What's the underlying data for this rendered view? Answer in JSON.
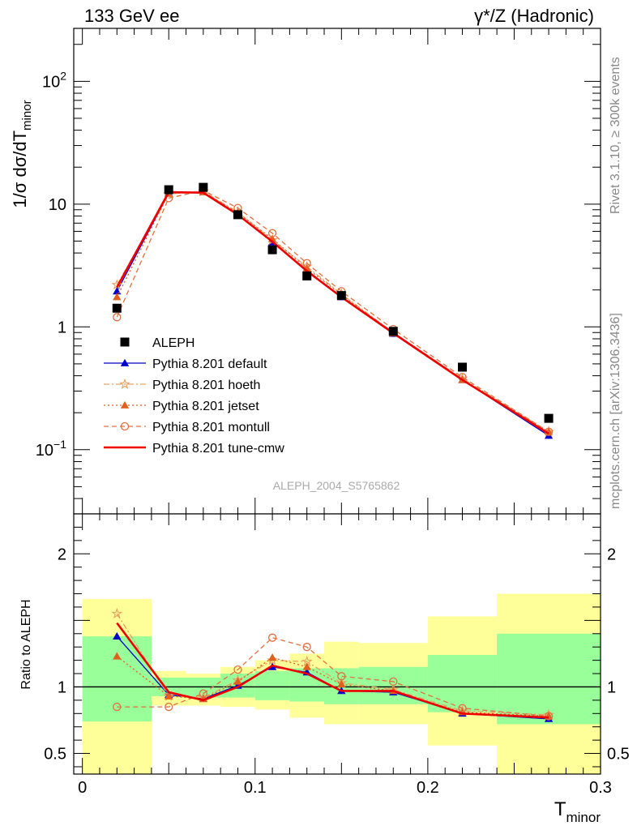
{
  "header": {
    "left": "133 GeV ee",
    "right": "γ*/Z (Hadronic)"
  },
  "side_labels": {
    "rivet": "Rivet 3.1.10, ≥ 300k events",
    "mcplots": "mcplots.cern.ch [arXiv:1306.3436]"
  },
  "analysis_id": "ALEPH_2004_S5765862",
  "colors": {
    "aleph": "#000000",
    "default": "#0000cc",
    "hoeth": "#e8a060",
    "jetset": "#e0601e",
    "montull": "#e07040",
    "tune_cmw": "#ee0000",
    "band_outer": "#ffff99",
    "band_inner": "#99ff99"
  },
  "chart_data": [
    {
      "type": "line",
      "panel": "main",
      "ylabel": "1/σ  dσ/dT_minor",
      "xlim": [
        -0.005,
        0.3
      ],
      "ylim": [
        0.03,
        270
      ],
      "yscale": "log",
      "yticklabels": [
        "10^-1",
        "1",
        "10",
        "10^2"
      ],
      "legend_position": "left-middle",
      "x": [
        0.02,
        0.05,
        0.07,
        0.09,
        0.11,
        0.13,
        0.15,
        0.18,
        0.22,
        0.27
      ],
      "series": [
        {
          "name": "ALEPH",
          "style": "data",
          "values": [
            1.42,
            13.1,
            13.7,
            8.2,
            4.25,
            2.6,
            1.8,
            0.92,
            0.47,
            0.18
          ]
        },
        {
          "name": "Pythia 8.201 default",
          "style": "default",
          "values": [
            1.95,
            12.3,
            12.5,
            8.3,
            4.9,
            2.9,
            1.75,
            0.88,
            0.37,
            0.13
          ]
        },
        {
          "name": "Pythia 8.201 hoeth",
          "style": "hoeth",
          "values": [
            2.2,
            12.1,
            12.7,
            8.6,
            5.1,
            3.1,
            1.85,
            0.9,
            0.38,
            0.14
          ]
        },
        {
          "name": "Pythia 8.201 jetset",
          "style": "jetset",
          "values": [
            1.75,
            12.2,
            12.5,
            8.5,
            5.2,
            3.0,
            1.83,
            0.89,
            0.37,
            0.14
          ]
        },
        {
          "name": "Pythia 8.201 montull",
          "style": "montull",
          "values": [
            1.2,
            11.2,
            12.9,
            9.3,
            5.8,
            3.3,
            1.95,
            0.96,
            0.39,
            0.14
          ]
        },
        {
          "name": "Pythia 8.201 tune-cmw",
          "style": "tune_cmw",
          "values": [
            2.1,
            12.5,
            12.4,
            8.2,
            4.95,
            2.85,
            1.75,
            0.89,
            0.37,
            0.135
          ]
        }
      ]
    },
    {
      "type": "line",
      "panel": "ratio",
      "ylabel": "Ratio to ALEPH",
      "xlabel": "T_minor",
      "xlim": [
        -0.005,
        0.3
      ],
      "ylim": [
        0.345,
        2.3
      ],
      "xticklabels": [
        "0",
        "0.1",
        "0.2",
        "0.3"
      ],
      "yticklabels": [
        "0.5",
        "1",
        "2"
      ],
      "reference_line": 1,
      "bins": [
        [
          0,
          0.04
        ],
        [
          0.04,
          0.06
        ],
        [
          0.06,
          0.08
        ],
        [
          0.08,
          0.1
        ],
        [
          0.1,
          0.12
        ],
        [
          0.12,
          0.14
        ],
        [
          0.14,
          0.16
        ],
        [
          0.16,
          0.2
        ],
        [
          0.2,
          0.24
        ],
        [
          0.24,
          0.3
        ]
      ],
      "band_outer": [
        [
          0.345,
          1.66
        ],
        [
          0.86,
          1.12
        ],
        [
          0.86,
          1.1
        ],
        [
          0.85,
          1.15
        ],
        [
          0.83,
          1.2
        ],
        [
          0.77,
          1.25
        ],
        [
          0.72,
          1.34
        ],
        [
          0.72,
          1.33
        ],
        [
          0.56,
          1.53
        ],
        [
          0.345,
          1.7
        ]
      ],
      "band_inner": [
        [
          0.74,
          1.38
        ],
        [
          0.93,
          1.07
        ],
        [
          0.92,
          1.07
        ],
        [
          0.92,
          1.1
        ],
        [
          0.9,
          1.12
        ],
        [
          0.89,
          1.14
        ],
        [
          0.87,
          1.14
        ],
        [
          0.87,
          1.15
        ],
        [
          0.81,
          1.24
        ],
        [
          0.72,
          1.4
        ]
      ],
      "x": [
        0.02,
        0.05,
        0.07,
        0.09,
        0.11,
        0.13,
        0.15,
        0.18,
        0.22,
        0.27
      ],
      "series": [
        {
          "name": "Pythia 8.201 default",
          "style": "default",
          "values": [
            1.38,
            0.94,
            0.91,
            1.01,
            1.15,
            1.11,
            0.97,
            0.96,
            0.8,
            0.76
          ]
        },
        {
          "name": "Pythia 8.201 hoeth",
          "style": "hoeth",
          "values": [
            1.55,
            0.93,
            0.92,
            1.05,
            1.2,
            1.19,
            1.03,
            0.98,
            0.82,
            0.79
          ]
        },
        {
          "name": "Pythia 8.201 jetset",
          "style": "jetset",
          "values": [
            1.23,
            0.93,
            0.91,
            1.04,
            1.22,
            1.15,
            1.02,
            0.97,
            0.81,
            0.78
          ]
        },
        {
          "name": "Pythia 8.201 montull",
          "style": "montull",
          "values": [
            0.85,
            0.85,
            0.95,
            1.13,
            1.37,
            1.3,
            1.08,
            1.04,
            0.84,
            0.78
          ]
        },
        {
          "name": "Pythia 8.201 tune-cmw",
          "style": "tune_cmw",
          "values": [
            1.48,
            0.96,
            0.9,
            1.0,
            1.16,
            1.1,
            0.97,
            0.97,
            0.8,
            0.77
          ]
        }
      ]
    }
  ]
}
